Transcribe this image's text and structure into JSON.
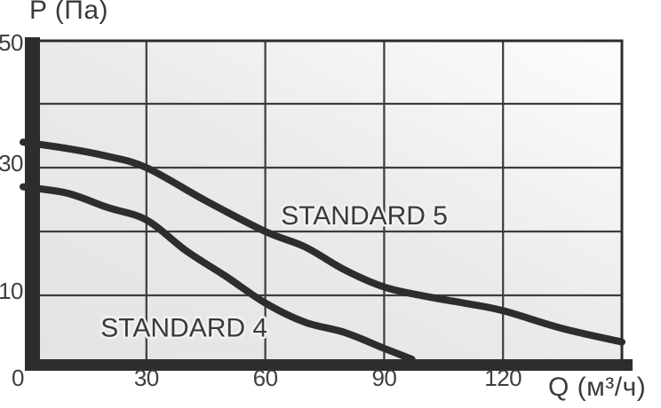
{
  "chart_data": {
    "type": "line",
    "title": "",
    "xlabel": "Q (м³/ч)",
    "ylabel": "P (Па)",
    "x_range": [
      0,
      150
    ],
    "y_range": [
      0,
      50
    ],
    "x_ticks": [
      0,
      30,
      60,
      90,
      120
    ],
    "y_ticks": [
      50,
      30,
      10
    ],
    "grid_x": [
      30,
      60,
      90,
      120
    ],
    "grid_y": [
      10,
      20,
      30,
      40
    ],
    "grid": true,
    "legend_position": "inline-curve-labels",
    "colors": {
      "curve": "#2d2d2d",
      "axis_bar": "#2d2d2d",
      "grid_line": "#3c3c3c",
      "tick_text": "#3f3f3f",
      "plot_bg_from": "#e4e4e4",
      "plot_bg_mid": "#eaeaea",
      "plot_bg_to": "#fdfdfd"
    },
    "series": [
      {
        "name": "STANDARD 5",
        "label_at": {
          "x": 85,
          "y": 22.5
        },
        "points": [
          [
            0,
            34
          ],
          [
            10,
            33
          ],
          [
            20,
            31.8
          ],
          [
            30,
            30
          ],
          [
            45,
            24.8
          ],
          [
            60,
            20
          ],
          [
            70,
            17.6
          ],
          [
            80,
            14
          ],
          [
            90,
            11.3
          ],
          [
            100,
            9.9
          ],
          [
            110,
            8.8
          ],
          [
            120,
            7.6
          ],
          [
            135,
            4.8
          ],
          [
            150,
            2.7
          ]
        ]
      },
      {
        "name": "STANDARD 4",
        "label_at": {
          "x": 39.5,
          "y": 4.9
        },
        "points": [
          [
            0,
            27
          ],
          [
            10,
            26
          ],
          [
            20,
            23.8
          ],
          [
            30,
            21.8
          ],
          [
            40,
            17
          ],
          [
            50,
            13
          ],
          [
            60,
            8.8
          ],
          [
            70,
            5.8
          ],
          [
            80,
            4.2
          ],
          [
            90,
            1.7
          ],
          [
            97,
            0
          ]
        ]
      }
    ]
  }
}
